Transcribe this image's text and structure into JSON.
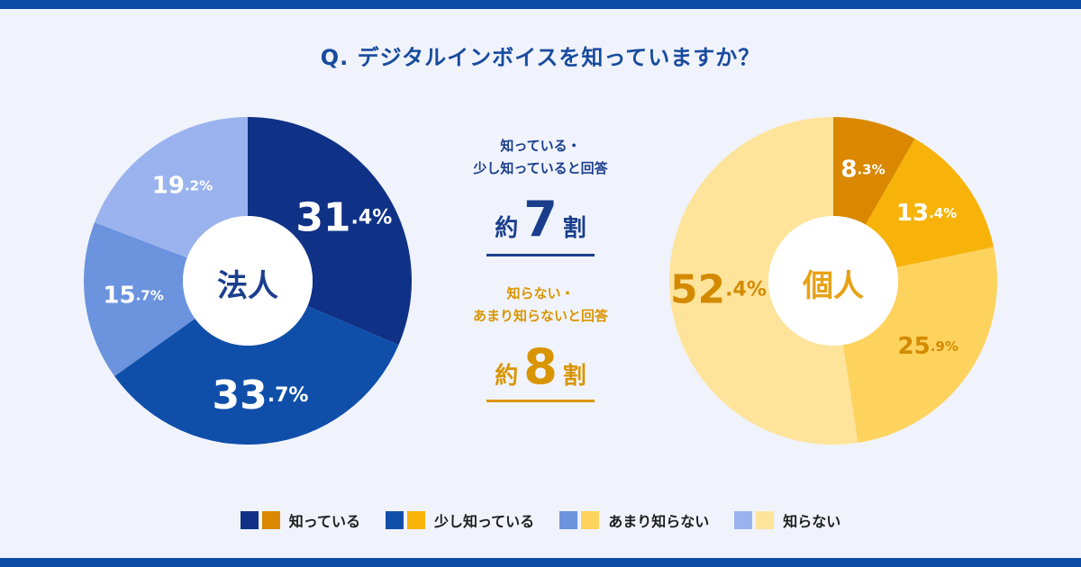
{
  "colors": {
    "frame": "#0b4aa6",
    "title": "#174b9e",
    "corp_label": "#1b3f8d",
    "ind_label": "#e8a114",
    "aware_accent": "#1a3e8c",
    "unaware_accent": "#d99500"
  },
  "title": "Q. デジタルインボイスを知っていますか？",
  "summary": {
    "aware": {
      "label_line1": "知っている・",
      "label_line2": "少し知っていると回答",
      "prefix": "約",
      "number": "7",
      "suffix": "割"
    },
    "unaware": {
      "label_line1": "知らない・",
      "label_line2": "あまり知らないと回答",
      "prefix": "約",
      "number": "8",
      "suffix": "割"
    }
  },
  "chart_data": [
    {
      "type": "pie",
      "title": "法人",
      "categories": [
        "知っている",
        "少し知っている",
        "あまり知らない",
        "知らない"
      ],
      "values": [
        31.4,
        33.7,
        15.7,
        19.2
      ],
      "labels": [
        {
          "num": "31",
          "dec": ".4",
          "unit": "%"
        },
        {
          "num": "33",
          "dec": ".7",
          "unit": "%"
        },
        {
          "num": "15",
          "dec": ".7",
          "unit": "%"
        },
        {
          "num": "19",
          "dec": ".2",
          "unit": "%"
        }
      ],
      "colors": [
        "#0f3287",
        "#0f4faa",
        "#6b93de",
        "#9ab3ee"
      ],
      "label_colors": [
        "#ffffff",
        "#ffffff",
        "#ffffff",
        "#ffffff"
      ],
      "unit": "%"
    },
    {
      "type": "pie",
      "title": "個人",
      "categories": [
        "知っている",
        "少し知っている",
        "あまり知らない",
        "知らない"
      ],
      "values": [
        8.3,
        13.4,
        25.9,
        52.4
      ],
      "labels": [
        {
          "num": "8",
          "dec": ".3",
          "unit": "%"
        },
        {
          "num": "13",
          "dec": ".4",
          "unit": "%"
        },
        {
          "num": "25",
          "dec": ".9",
          "unit": "%"
        },
        {
          "num": "52",
          "dec": ".4",
          "unit": "%"
        }
      ],
      "colors": [
        "#d98800",
        "#f8b30a",
        "#fdd35e",
        "#fee49a"
      ],
      "label_colors": [
        "#ffffff",
        "#ffffff",
        "#d48a00",
        "#d48a00"
      ],
      "unit": "%"
    }
  ],
  "legend": [
    {
      "label": "知っている",
      "colors": [
        "#0f3287",
        "#d98800"
      ]
    },
    {
      "label": "少し知っている",
      "colors": [
        "#0f4faa",
        "#f8b30a"
      ]
    },
    {
      "label": "あまり知らない",
      "colors": [
        "#6b93de",
        "#fdd35e"
      ]
    },
    {
      "label": "知らない",
      "colors": [
        "#9ab3ee",
        "#fee49a"
      ]
    }
  ]
}
